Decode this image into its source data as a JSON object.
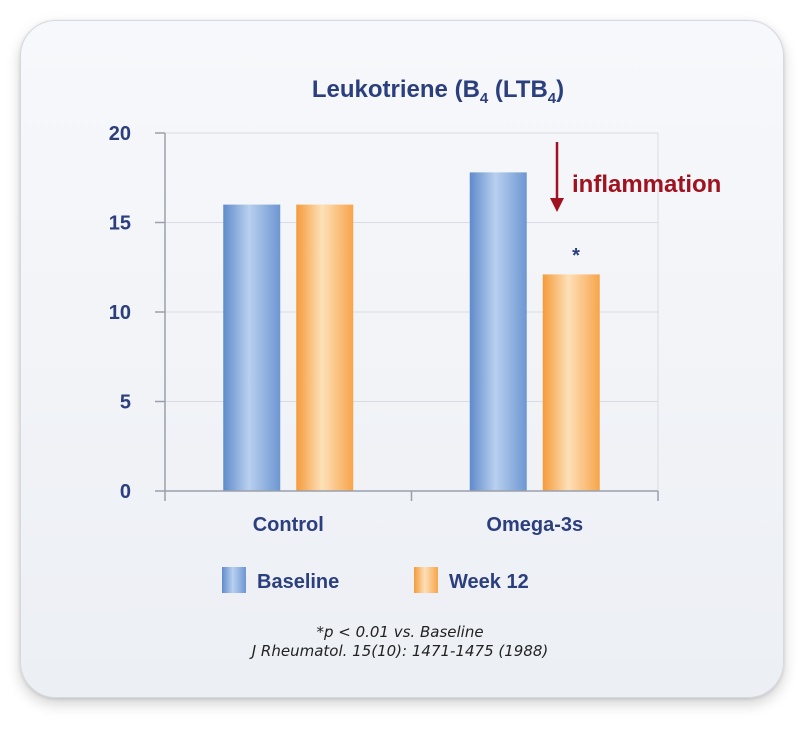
{
  "chart_data": {
    "type": "bar",
    "title_main": "Leukotriene (B",
    "title_sub1": "4",
    "title_mid": " (LTB",
    "title_sub2": "4",
    "title_end": ")",
    "categories": [
      "Control",
      "Omega-3s"
    ],
    "series": [
      {
        "name": "Baseline",
        "values": [
          16,
          17.8
        ],
        "color": "#7fa7dc"
      },
      {
        "name": "Week 12",
        "values": [
          16,
          12.1
        ],
        "color": "#fbb769"
      }
    ],
    "ylim": [
      0,
      20
    ],
    "yticks": [
      "0",
      "5",
      "10",
      "15",
      "20"
    ],
    "grid": true,
    "legend_position": "bottom",
    "annotation": "inflammation",
    "significance_marker": "*",
    "footnote": "*p < 0.01 vs. Baseline",
    "citation": "J Rheumatol. 15(10): 1471-1475 (1988)"
  },
  "colors": {
    "text": "#2b3f7e",
    "annotation": "#a0121f",
    "grid": "#d8dbe3",
    "axis": "#9aa0ab"
  }
}
